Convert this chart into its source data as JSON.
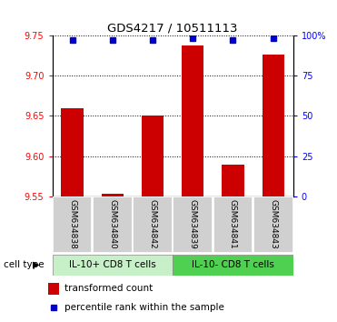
{
  "title": "GDS4217 / 10511113",
  "samples": [
    "GSM634838",
    "GSM634840",
    "GSM634842",
    "GSM634839",
    "GSM634841",
    "GSM634843"
  ],
  "red_values": [
    9.66,
    9.553,
    9.65,
    9.738,
    9.59,
    9.726
  ],
  "blue_values": [
    97,
    97,
    97,
    98,
    97,
    98
  ],
  "ylim_left": [
    9.55,
    9.75
  ],
  "ylim_right": [
    0,
    100
  ],
  "yticks_left": [
    9.55,
    9.6,
    9.65,
    9.7,
    9.75
  ],
  "yticks_right": [
    0,
    25,
    50,
    75,
    100
  ],
  "ytick_labels_right": [
    "0",
    "25",
    "50",
    "75",
    "100%"
  ],
  "group1_label": "IL-10+ CD8 T cells",
  "group2_label": "IL-10- CD8 T cells",
  "group1_indices": [
    0,
    1,
    2
  ],
  "group2_indices": [
    3,
    4,
    5
  ],
  "group1_color": "#c8f0c8",
  "group2_color": "#50d050",
  "bar_color": "#cc0000",
  "dot_color": "#0000cc",
  "cell_type_label": "cell type",
  "legend_red_label": "transformed count",
  "legend_blue_label": "percentile rank within the sample",
  "baseline": 9.55,
  "background_color": "#ffffff",
  "tick_box_color": "#d0d0d0"
}
